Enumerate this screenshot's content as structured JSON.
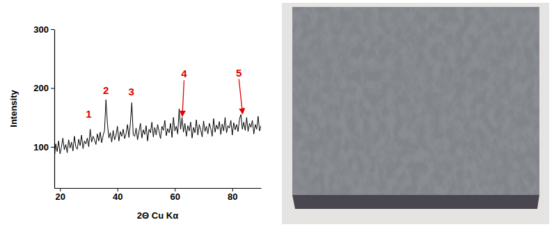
{
  "chart_data": {
    "type": "line",
    "x_label": "2Θ Cu Kα",
    "y_label": "Intensity",
    "color": "#000000",
    "xlim": [
      18,
      90
    ],
    "xticks": [
      20,
      40,
      60,
      80
    ],
    "ylim": [
      30,
      300
    ],
    "yticks": [
      100,
      200,
      300
    ],
    "x": [
      18,
      18.5,
      19,
      19.5,
      20,
      20.5,
      21,
      21.5,
      22,
      22.5,
      23,
      23.5,
      24,
      24.5,
      25,
      25.5,
      26,
      26.5,
      27,
      27.5,
      28,
      28.5,
      29,
      29.5,
      30,
      30.5,
      31,
      31.5,
      32,
      32.5,
      33,
      33.5,
      34,
      34.5,
      35,
      35.5,
      36,
      36.5,
      37,
      37.5,
      38,
      38.5,
      39,
      39.5,
      40,
      40.5,
      41,
      41.5,
      42,
      42.5,
      43,
      43.5,
      44,
      44.5,
      45,
      45.5,
      46,
      46.5,
      47,
      47.5,
      48,
      48.5,
      49,
      49.5,
      50,
      50.5,
      51,
      51.5,
      52,
      52.5,
      53,
      53.5,
      54,
      54.5,
      55,
      55.5,
      56,
      56.5,
      57,
      57.5,
      58,
      58.5,
      59,
      59.5,
      60,
      60.5,
      61,
      61.5,
      62,
      62.5,
      63,
      63.5,
      64,
      64.5,
      65,
      65.5,
      66,
      66.5,
      67,
      67.5,
      68,
      68.5,
      69,
      69.5,
      70,
      70.5,
      71,
      71.5,
      72,
      72.5,
      73,
      73.5,
      74,
      74.5,
      75,
      75.5,
      76,
      76.5,
      77,
      77.5,
      78,
      78.5,
      79,
      79.5,
      80,
      80.5,
      81,
      81.5,
      82,
      82.5,
      83,
      83.5,
      84,
      84.5,
      85,
      85.5,
      86,
      86.5,
      87,
      87.5,
      88,
      88.5,
      89,
      89.5,
      90
    ],
    "values": [
      80,
      105,
      92,
      110,
      88,
      100,
      115,
      95,
      104,
      90,
      112,
      98,
      108,
      93,
      118,
      100,
      96,
      113,
      102,
      120,
      97,
      110,
      105,
      115,
      100,
      130,
      108,
      118,
      112,
      104,
      122,
      110,
      125,
      107,
      119,
      128,
      180,
      140,
      115,
      124,
      108,
      128,
      112,
      120,
      135,
      110,
      126,
      118,
      130,
      114,
      122,
      138,
      116,
      140,
      175,
      120,
      118,
      132,
      112,
      126,
      140,
      115,
      129,
      121,
      136,
      110,
      130,
      124,
      142,
      117,
      133,
      120,
      138,
      126,
      114,
      135,
      128,
      145,
      119,
      131,
      124,
      140,
      116,
      150,
      127,
      135,
      122,
      165,
      130,
      150,
      125,
      140,
      118,
      136,
      127,
      142,
      115,
      133,
      124,
      146,
      120,
      138,
      129,
      117,
      144,
      126,
      135,
      122,
      140,
      131,
      118,
      148,
      125,
      137,
      130,
      143,
      121,
      139,
      127,
      150,
      124,
      136,
      132,
      145,
      120,
      141,
      129,
      138,
      126,
      147,
      155,
      130,
      142,
      128,
      150,
      126,
      140,
      133,
      145,
      122,
      138,
      130,
      152,
      127,
      136
    ],
    "annotations": [
      {
        "text": "1",
        "x": 30,
        "y": 150
      },
      {
        "text": "2",
        "x": 36,
        "y": 190
      },
      {
        "text": "3",
        "x": 44.8,
        "y": 188
      },
      {
        "text": "4",
        "x": 63.2,
        "y": 218,
        "arrow_x": 62.6,
        "arrow_y": 152
      },
      {
        "text": "5",
        "x": 82.3,
        "y": 220,
        "arrow_x": 83.6,
        "arrow_y": 156
      }
    ]
  }
}
